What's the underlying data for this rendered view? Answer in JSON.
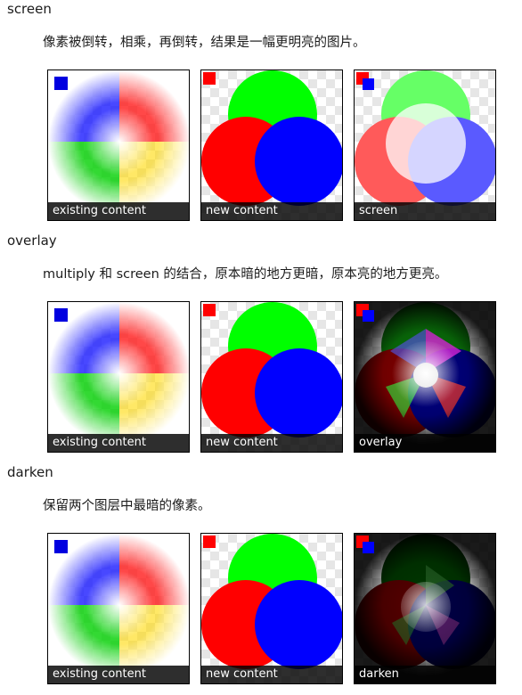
{
  "sections": [
    {
      "term": "screen",
      "description": "像素被倒转，相乘，再倒转，结果是一幅更明亮的图片。",
      "captions": [
        "existing content",
        "new content",
        "screen"
      ]
    },
    {
      "term": "overlay",
      "description": "multiply 和 screen 的结合，原本暗的地方更暗，原本亮的地方更亮。",
      "captions": [
        "existing content",
        "new content",
        "overlay"
      ]
    },
    {
      "term": "darken",
      "description": "保留两个图层中最暗的像素。",
      "captions": [
        "existing content",
        "new content",
        "darken"
      ]
    }
  ]
}
